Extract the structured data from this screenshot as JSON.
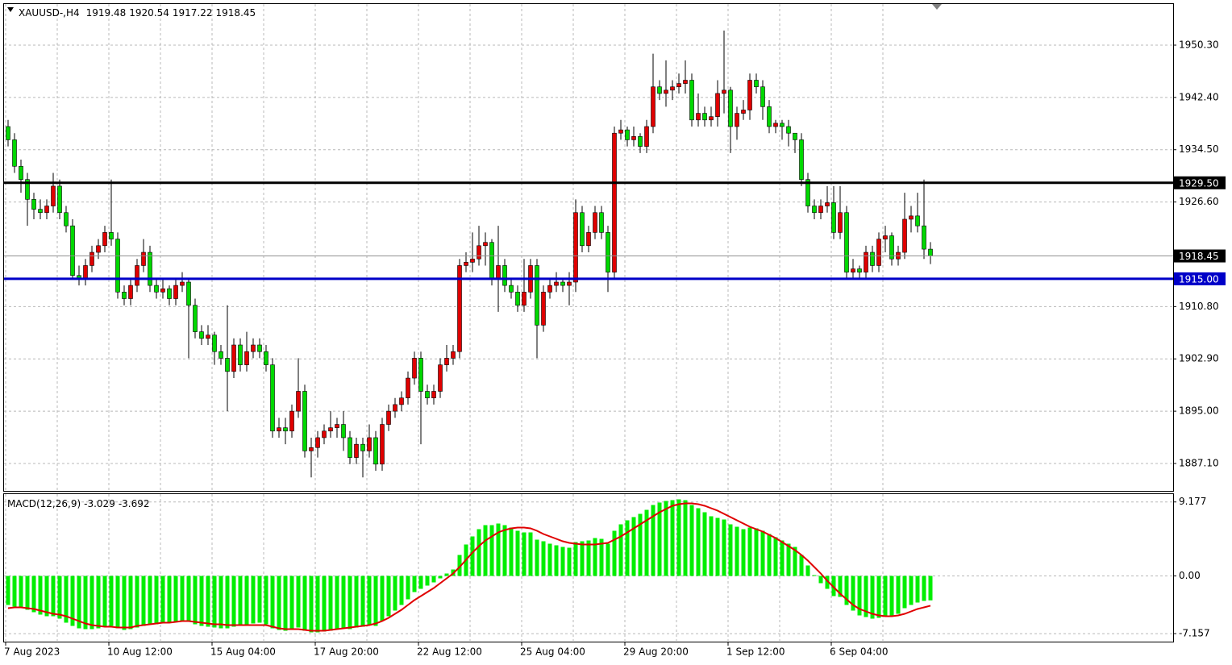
{
  "chart_data": [
    {
      "type": "candlestick",
      "title": "XAUUSD-,H4",
      "categories": [
        "7 Aug 2023",
        null,
        null,
        null,
        null,
        null,
        null,
        null,
        null,
        null,
        null,
        null,
        null,
        null,
        null,
        null,
        "10 Aug 12:00",
        null,
        null,
        null,
        null,
        null,
        null,
        null,
        null,
        null,
        null,
        null,
        null,
        null,
        null,
        null,
        "15 Aug 04:00",
        null,
        null,
        null,
        null,
        null,
        null,
        null,
        null,
        null,
        null,
        null,
        null,
        null,
        null,
        null,
        "17 Aug 20:00",
        null,
        null,
        null,
        null,
        null,
        null,
        null,
        null,
        null,
        null,
        null,
        null,
        null,
        null,
        null,
        "22 Aug 12:00",
        null,
        null,
        null,
        null,
        null,
        null,
        null,
        null,
        null,
        null,
        null,
        null,
        null,
        null,
        null,
        "25 Aug 04:00",
        null,
        null,
        null,
        null,
        null,
        null,
        null,
        null,
        null,
        null,
        null,
        null,
        null,
        null,
        null,
        "29 Aug 20:00",
        null,
        null,
        null,
        null,
        null,
        null,
        null,
        null,
        null,
        null,
        null,
        null,
        null,
        null,
        null,
        "1 Sep 12:00",
        null,
        null,
        null,
        null,
        null,
        null,
        null,
        null,
        null,
        null,
        null,
        null,
        null,
        null,
        null,
        "6 Sep 04:00",
        null,
        null,
        null,
        null,
        null,
        null,
        null,
        null,
        null,
        null,
        null,
        null,
        null,
        null,
        null
      ],
      "open": [
        1938,
        1936,
        1932,
        1930,
        1927,
        1925.5,
        1925,
        1926,
        1929,
        1925,
        1923,
        1915.5,
        1915,
        1917,
        1919,
        1920,
        1922,
        1921,
        1913,
        1912,
        1914,
        1917,
        1919,
        1914,
        1913,
        1913.5,
        1912,
        1914,
        1914.5,
        1911,
        1907,
        1906,
        1906.5,
        1904,
        1903,
        1901,
        1905,
        1902,
        1904,
        1905,
        1904,
        1902,
        1892,
        1892.5,
        1892,
        1895,
        1898,
        1889,
        1889.5,
        1891,
        1892,
        1892.5,
        1893,
        1891,
        1888,
        1890,
        1889,
        1891,
        1887,
        1893,
        1895,
        1896,
        1897,
        1900,
        1903,
        1898,
        1897,
        1898,
        1902,
        1903,
        1904,
        1917,
        1917.5,
        1918,
        1920,
        1920.5,
        1915,
        1917,
        1914,
        1913,
        1911,
        1913,
        1917,
        1908,
        1913,
        1914,
        1914.5,
        1914,
        1914.5,
        1925,
        1920,
        1922,
        1925,
        1922,
        1916,
        1937,
        1937.5,
        1936,
        1936.5,
        1935,
        1938,
        1944,
        1943,
        1943.5,
        1944,
        1944.5,
        1945,
        1939,
        1940,
        1939,
        1939.5,
        1943,
        1943.5,
        1938,
        1940,
        1940.5,
        1945,
        1944,
        1941,
        1938,
        1938.5,
        1938,
        1937,
        1936,
        1930,
        1926,
        1925,
        1926,
        1926.5,
        1922,
        1925,
        1916,
        1916.5,
        1916,
        1919,
        1917,
        1921,
        1921.5,
        1918,
        1919,
        1924,
        1924.5,
        1923,
        1919.48
      ],
      "high": [
        1939,
        1937,
        1933,
        1931,
        1928,
        1927,
        1927,
        1931,
        1930,
        1926,
        1924,
        1917,
        1918,
        1920,
        1921,
        1923,
        1930,
        1922,
        1914,
        1915,
        1918,
        1921,
        1920,
        1915,
        1915,
        1914,
        1915,
        1916,
        1915,
        1912,
        1908,
        1908,
        1907,
        1905,
        1911,
        1906,
        1906,
        1907,
        1906,
        1906,
        1905,
        1903,
        1894,
        1894,
        1896,
        1903,
        1899,
        1891,
        1892,
        1893,
        1895,
        1894,
        1895,
        1892,
        1891,
        1891,
        1893,
        1892,
        1894,
        1896,
        1897,
        1898,
        1901,
        1904,
        1904,
        1899,
        1899,
        1903,
        1905,
        1905,
        1918,
        1919,
        1922,
        1923,
        1922,
        1921,
        1923,
        1918,
        1915,
        1914,
        1918,
        1918,
        1918,
        1914,
        1915,
        1916,
        1915,
        1916,
        1927,
        1926,
        1923,
        1926,
        1926,
        1923,
        1938,
        1939,
        1938,
        1938,
        1937,
        1939,
        1949,
        1945,
        1948,
        1945,
        1946,
        1948,
        1946,
        1943,
        1941,
        1941,
        1945,
        1952.5,
        1944,
        1941,
        1942,
        1946,
        1946,
        1945,
        1942,
        1939,
        1939,
        1939,
        1937,
        1937,
        1931,
        1927,
        1927,
        1929,
        1929,
        1929,
        1926,
        1918,
        1917,
        1920,
        1920,
        1922,
        1923,
        1922,
        1920,
        1928,
        1926,
        1928,
        1930,
        1920.54
      ],
      "low": [
        1935,
        1931,
        1928,
        1923,
        1924,
        1924,
        1924,
        1925,
        1924,
        1922,
        1915,
        1914,
        1914,
        1916,
        1918,
        1919,
        1920,
        1912,
        1911,
        1911,
        1913,
        1916,
        1913,
        1912,
        1912,
        1911,
        1911,
        1913,
        1903,
        1906,
        1905,
        1905,
        1902,
        1902,
        1895,
        1900,
        1901,
        1901,
        1903,
        1903,
        1901,
        1891,
        1891,
        1890,
        1891,
        1894,
        1888,
        1885,
        1888,
        1890,
        1891,
        1891,
        1889,
        1887,
        1887,
        1885,
        1888,
        1886,
        1886,
        1892,
        1894,
        1895,
        1896,
        1899,
        1890,
        1896,
        1896,
        1897,
        1901,
        1902,
        1903,
        1916,
        1916,
        1917,
        1917,
        1914,
        1910,
        1913,
        1912,
        1910,
        1910,
        1912,
        1903,
        1907,
        1912,
        1913,
        1913,
        1911,
        1913,
        1919,
        1919,
        1921,
        1921,
        1913,
        1915,
        1936,
        1935,
        1935,
        1934,
        1934,
        1937,
        1942,
        1941,
        1942,
        1943,
        1943,
        1938,
        1938,
        1938,
        1938,
        1938,
        1940,
        1934,
        1936,
        1939,
        1939,
        1943,
        1939,
        1937,
        1937,
        1936,
        1935,
        1934,
        1929,
        1925,
        1924,
        1924,
        1925,
        1921,
        1921,
        1915,
        1915,
        1915,
        1915,
        1916,
        1916,
        1919,
        1917,
        1917,
        1918,
        1922,
        1922,
        1918,
        1917.22
      ],
      "close": [
        1936,
        1932,
        1930,
        1927,
        1925.5,
        1925,
        1926,
        1929,
        1925,
        1923,
        1915.5,
        1915,
        1917,
        1919,
        1920,
        1922,
        1921,
        1913,
        1912,
        1914,
        1917,
        1919,
        1914,
        1913,
        1913.5,
        1912,
        1914,
        1914.5,
        1911,
        1907,
        1906,
        1906.5,
        1904,
        1903,
        1901,
        1905,
        1902,
        1904,
        1905,
        1904,
        1902,
        1892,
        1892.5,
        1892,
        1895,
        1898,
        1889,
        1889.5,
        1891,
        1892,
        1892.5,
        1893,
        1891,
        1888,
        1890,
        1889,
        1891,
        1887,
        1893,
        1895,
        1896,
        1897,
        1900,
        1903,
        1898,
        1897,
        1898,
        1902,
        1903,
        1904,
        1917,
        1917.5,
        1918,
        1920,
        1920.5,
        1915,
        1917,
        1914,
        1913,
        1911,
        1913,
        1917,
        1908,
        1913,
        1914,
        1914.5,
        1914,
        1914.5,
        1925,
        1920,
        1922,
        1925,
        1922,
        1916,
        1937,
        1937.5,
        1936,
        1936.5,
        1935,
        1938,
        1944,
        1943,
        1943.5,
        1944,
        1944.5,
        1945,
        1939,
        1940,
        1939,
        1939.5,
        1943,
        1943.5,
        1938,
        1940,
        1940.5,
        1945,
        1944,
        1941,
        1938,
        1938.5,
        1938,
        1937,
        1936,
        1930,
        1926,
        1925,
        1926,
        1926.5,
        1922,
        1925,
        1916,
        1916.5,
        1916,
        1919,
        1917,
        1921,
        1921.5,
        1918,
        1919,
        1924,
        1924.5,
        1923,
        1919.48,
        1918.45
      ],
      "up_color": "#e00000",
      "down_color": "#00d800",
      "ylim": [
        1883.08,
        1956.51
      ],
      "yticks": [
        {
          "value": 1950.3,
          "label": "1950.30"
        },
        {
          "value": 1942.4,
          "label": "1942.40"
        },
        {
          "value": 1934.5,
          "label": "1934.50"
        },
        {
          "value": 1926.6,
          "label": "1926.60"
        },
        {
          "value": 1910.8,
          "label": "1910.80"
        },
        {
          "value": 1902.9,
          "label": "1902.90"
        },
        {
          "value": 1895,
          "label": "1895.00"
        },
        {
          "value": 1887.1,
          "label": "1887.10"
        }
      ],
      "hlines": [
        {
          "value": 1929.5,
          "label": "1929.50",
          "color": "#000000"
        },
        {
          "value": 1915,
          "label": "1915.00",
          "color": "#0000c8"
        }
      ],
      "grid": true
    },
    {
      "type": "macd",
      "title": "MACD(12,26,9)",
      "histogram": [
        -3.6,
        -3.8,
        -4.0,
        -4.2,
        -4.5,
        -4.8,
        -5.0,
        -5.0,
        -5.3,
        -5.8,
        -6.2,
        -6.5,
        -6.6,
        -6.6,
        -6.5,
        -6.3,
        -6.2,
        -6.5,
        -6.7,
        -6.6,
        -6.4,
        -6.2,
        -6.0,
        -6.0,
        -5.9,
        -5.8,
        -5.7,
        -5.6,
        -5.7,
        -6.0,
        -6.2,
        -6.3,
        -6.4,
        -6.5,
        -6.5,
        -6.3,
        -6.2,
        -6.0,
        -5.9,
        -5.8,
        -6.0,
        -6.5,
        -6.7,
        -6.8,
        -6.7,
        -6.4,
        -6.8,
        -7.0,
        -7.0,
        -6.9,
        -6.8,
        -6.6,
        -6.5,
        -6.6,
        -6.4,
        -6.3,
        -6.1,
        -6.2,
        -5.6,
        -5.0,
        -4.3,
        -3.6,
        -2.9,
        -2.0,
        -1.6,
        -1.2,
        -0.8,
        -0.3,
        0.3,
        0.8,
        2.6,
        3.9,
        4.9,
        5.8,
        6.3,
        6.3,
        6.5,
        6.3,
        6.0,
        5.6,
        5.4,
        5.4,
        4.5,
        4.3,
        4.0,
        3.8,
        3.6,
        3.5,
        4.2,
        4.3,
        4.4,
        4.7,
        4.6,
        4.0,
        5.6,
        6.4,
        6.9,
        7.3,
        7.7,
        8.2,
        8.8,
        9.1,
        9.3,
        9.4,
        9.5,
        9.4,
        8.8,
        8.4,
        7.9,
        7.4,
        7.2,
        7.0,
        6.4,
        6.1,
        5.8,
        6.0,
        5.9,
        5.6,
        5.2,
        4.8,
        4.4,
        4.0,
        3.6,
        2.6,
        1.3,
        0.1,
        -0.9,
        -1.6,
        -2.5,
        -2.6,
        -3.6,
        -4.3,
        -4.9,
        -5.1,
        -5.3,
        -5.2,
        -5.0,
        -4.9,
        -4.7,
        -4.0,
        -3.6,
        -3.3,
        -3.1,
        -3.029
      ],
      "signal": [
        -4.0,
        -3.9,
        -3.9,
        -4.0,
        -4.1,
        -4.3,
        -4.5,
        -4.7,
        -4.8,
        -5.0,
        -5.3,
        -5.6,
        -5.9,
        -6.1,
        -6.2,
        -6.3,
        -6.3,
        -6.4,
        -6.4,
        -6.4,
        -6.2,
        -6.1,
        -6.0,
        -5.9,
        -5.8,
        -5.8,
        -5.7,
        -5.6,
        -5.6,
        -5.7,
        -5.8,
        -5.9,
        -6.0,
        -6.0,
        -6.1,
        -6.1,
        -6.1,
        -6.1,
        -6.1,
        -6.1,
        -6.1,
        -6.3,
        -6.5,
        -6.6,
        -6.6,
        -6.6,
        -6.7,
        -6.8,
        -6.8,
        -6.8,
        -6.7,
        -6.6,
        -6.5,
        -6.4,
        -6.3,
        -6.2,
        -6.1,
        -5.9,
        -5.6,
        -5.2,
        -4.7,
        -4.2,
        -3.6,
        -3.0,
        -2.5,
        -2.0,
        -1.5,
        -0.9,
        -0.3,
        0.3,
        1.1,
        2.0,
        2.9,
        3.7,
        4.4,
        4.9,
        5.4,
        5.7,
        5.9,
        6.0,
        6.0,
        5.9,
        5.6,
        5.2,
        4.9,
        4.6,
        4.3,
        4.1,
        4.0,
        3.9,
        3.9,
        3.9,
        4.0,
        4.1,
        4.5,
        4.9,
        5.4,
        5.9,
        6.4,
        6.9,
        7.4,
        7.9,
        8.3,
        8.7,
        8.9,
        9.0,
        9.0,
        8.9,
        8.7,
        8.4,
        8.1,
        7.7,
        7.3,
        6.9,
        6.5,
        6.1,
        5.8,
        5.5,
        5.1,
        4.7,
        4.2,
        3.7,
        3.2,
        2.6,
        1.9,
        1.1,
        0.3,
        -0.6,
        -1.4,
        -2.2,
        -2.9,
        -3.6,
        -4.1,
        -4.4,
        -4.7,
        -4.9,
        -5.0,
        -5.0,
        -4.9,
        -4.7,
        -4.4,
        -4.1,
        -3.9,
        -3.692
      ],
      "histogram_color": "#00ee00",
      "signal_color": "#e00000",
      "ylim": [
        -8.05,
        10.15
      ],
      "yticks": [
        9.177,
        {
          "value": 0,
          "label": "0.00"
        },
        -7.157
      ]
    }
  ]
}
